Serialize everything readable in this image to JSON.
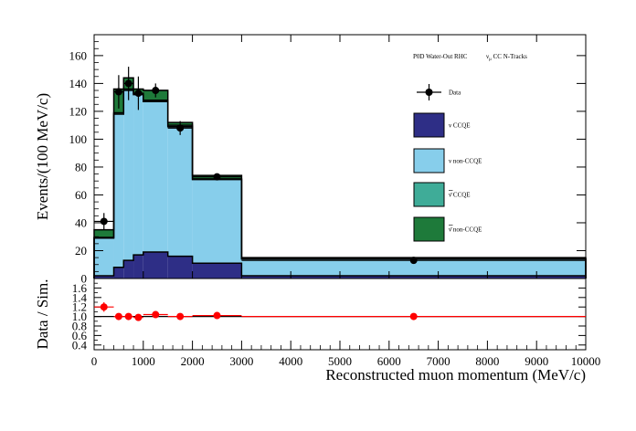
{
  "chart_data": [
    {
      "type": "stacked-histogram",
      "panel": "main",
      "annotation_left": "P0D Water-Out RHC",
      "annotation_right": "ν",
      "annotation_right_sub": "μ",
      "annotation_right_tail": " CC N-Tracks",
      "ylabel": "Events/(100 MeV/c)",
      "xlabel": "",
      "xlim": [
        0,
        10000
      ],
      "ylim": [
        0,
        175
      ],
      "y_ticks": [
        "0",
        "20",
        "40",
        "60",
        "80",
        "100",
        "120",
        "140",
        "160"
      ],
      "y_tick_values": [
        0,
        20,
        40,
        60,
        80,
        100,
        120,
        140,
        160
      ],
      "bin_edges": [
        0,
        400,
        600,
        800,
        1000,
        1500,
        2000,
        3000,
        10000
      ],
      "series": [
        {
          "name": "ν CCQE",
          "color": "#2e2e86",
          "values": [
            2,
            8,
            13,
            17,
            19,
            16,
            11,
            2
          ]
        },
        {
          "name": "ν non-CCQE",
          "color": "#87ceeb",
          "values": [
            27,
            110,
            122,
            115,
            108,
            93,
            60,
            12
          ]
        },
        {
          "name": "ν̄ CCQE",
          "color": "#3fac98",
          "values": [
            0.5,
            1,
            1,
            1,
            1,
            1,
            0.5,
            0.2
          ]
        },
        {
          "name": "ν̄ non-CCQE",
          "color": "#1e7a3a",
          "values": [
            5.5,
            17,
            8,
            3,
            7,
            2,
            2.5,
            0.8
          ]
        }
      ],
      "data_points": {
        "name": "Data",
        "x": [
          200,
          500,
          700,
          900,
          1250,
          1750,
          2500,
          6500
        ],
        "y": [
          41,
          134,
          140,
          133,
          135,
          108,
          73,
          13
        ],
        "xerr": [
          200,
          100,
          100,
          100,
          250,
          250,
          500,
          3500
        ],
        "yerr": [
          6,
          12,
          12,
          12,
          5,
          5,
          2,
          1
        ]
      },
      "legend": [
        {
          "label": "Data",
          "marker": "point"
        },
        {
          "label": "ν CCQE",
          "color": "#2e2e86"
        },
        {
          "label": "ν non-CCQE",
          "color": "#87ceeb"
        },
        {
          "label": "ν̄ CCQE",
          "color": "#3fac98"
        },
        {
          "label": "ν̄ non-CCQE",
          "color": "#1e7a3a"
        }
      ],
      "legend_position": "right"
    },
    {
      "type": "scatter",
      "panel": "ratio",
      "ylabel": "Data / Sim.",
      "xlabel": "Reconstructed muon momentum (MeV/c)",
      "xlim": [
        0,
        10000
      ],
      "ylim": [
        0.3,
        1.8
      ],
      "y_ticks": [
        "0.4",
        "0.6",
        "0.8",
        "1.0",
        "1.2",
        "1.4",
        "1.6"
      ],
      "y_tick_values": [
        0.4,
        0.6,
        0.8,
        1.0,
        1.2,
        1.4,
        1.6
      ],
      "x_ticks": [
        "0",
        "1000",
        "2000",
        "3000",
        "4000",
        "5000",
        "6000",
        "7000",
        "8000",
        "9000",
        "10000"
      ],
      "x_tick_values": [
        0,
        1000,
        2000,
        3000,
        4000,
        5000,
        6000,
        7000,
        8000,
        9000,
        10000
      ],
      "reference_line": 1.0,
      "points": {
        "x": [
          200,
          500,
          700,
          900,
          1250,
          1750,
          2500,
          6500
        ],
        "y": [
          1.2,
          1.0,
          1.0,
          0.98,
          1.04,
          1.0,
          1.02,
          1.0
        ],
        "xerr": [
          200,
          100,
          100,
          100,
          250,
          250,
          500,
          3500
        ],
        "yerr": [
          0.1,
          0.03,
          0.03,
          0.03,
          0.03,
          0.03,
          0.02,
          0.01
        ]
      },
      "color": "#ff0000"
    }
  ]
}
